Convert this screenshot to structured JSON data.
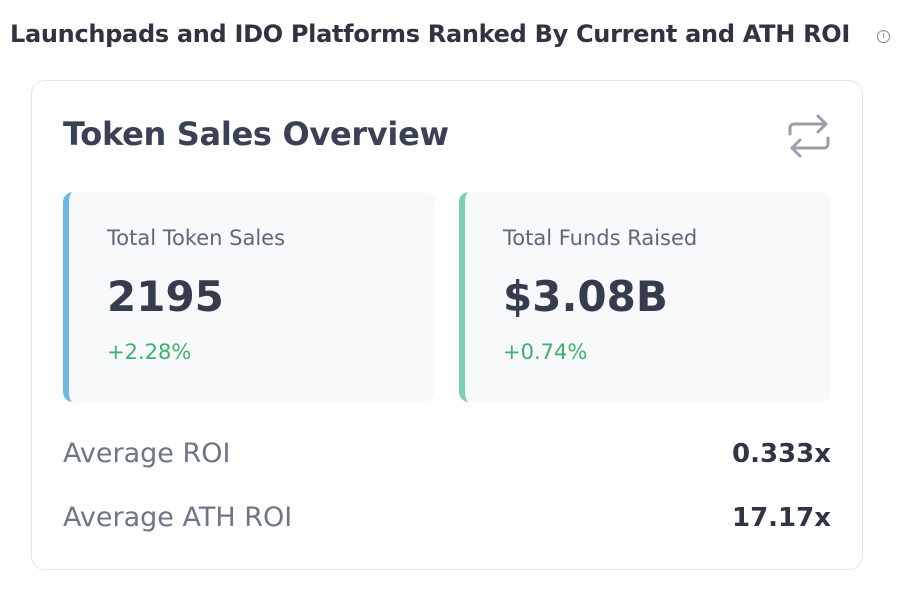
{
  "header": {
    "title": "Launchpads and IDO Platforms Ranked By Current and ATH ROI"
  },
  "card": {
    "title": "Token Sales Overview",
    "stats": [
      {
        "label": "Total Token Sales",
        "value": "2195",
        "change": "+2.28%"
      },
      {
        "label": "Total Funds Raised",
        "value": "$3.08B",
        "change": "+0.74%"
      }
    ],
    "rows": [
      {
        "label": "Average ROI",
        "value": "0.333x"
      },
      {
        "label": "Average ATH ROI",
        "value": "17.17x"
      }
    ]
  }
}
